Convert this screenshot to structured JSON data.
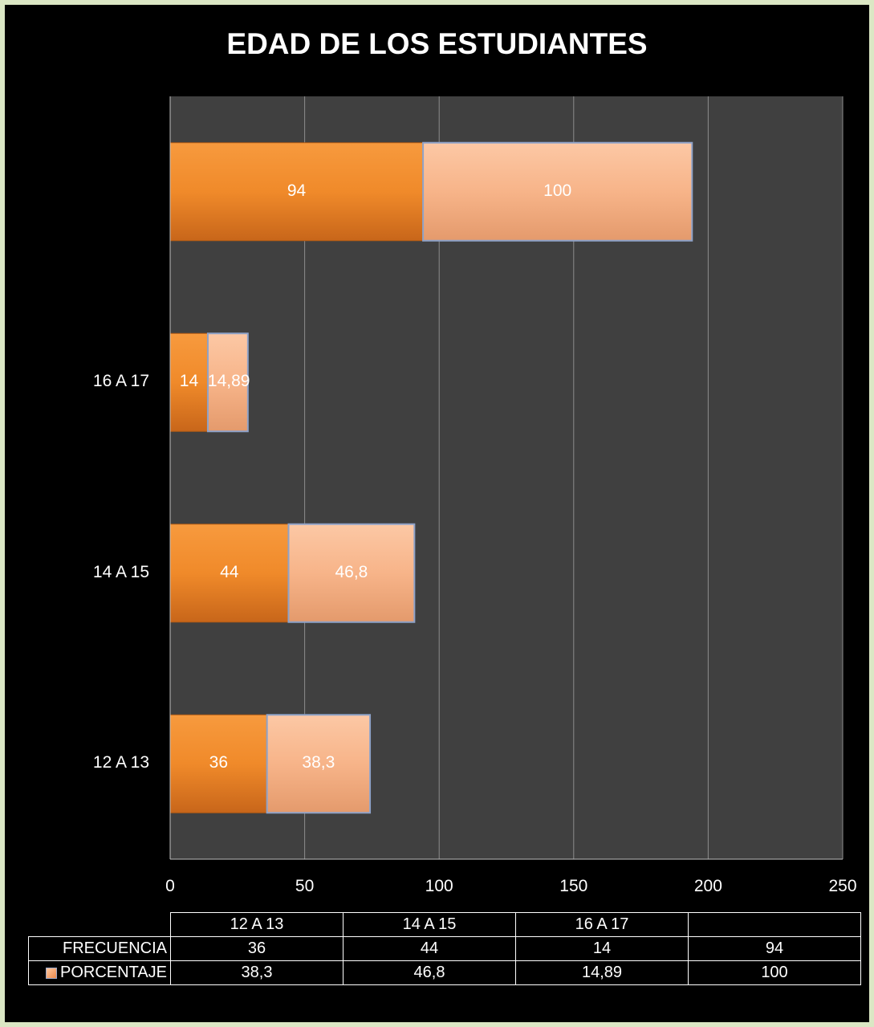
{
  "chart_data": {
    "type": "bar",
    "orientation": "horizontal",
    "stacked": true,
    "title": "EDAD DE LOS ESTUDIANTES",
    "categories": [
      "12  A  13",
      "14  A  15",
      "16  A  17",
      ""
    ],
    "series": [
      {
        "name": "FRECUENCIA",
        "values": [
          36,
          44,
          14,
          94
        ],
        "labels": [
          "36",
          "44",
          "14",
          "94"
        ],
        "color": "#f08a2a"
      },
      {
        "name": "PORCENTAJE",
        "values": [
          38.3,
          46.8,
          14.89,
          100
        ],
        "labels": [
          "38,3",
          "46,8",
          "14,89",
          "100"
        ],
        "color": "#f7b489"
      }
    ],
    "xlim": [
      0,
      250
    ],
    "xticks": [
      "0",
      "50",
      "100",
      "150",
      "200",
      "250"
    ],
    "grid": true,
    "legend": "data-table-below",
    "colors": {
      "background": "#000000",
      "plot_area": "#404040",
      "page": "#dbe7c4",
      "grid": "#8c8c8c"
    }
  }
}
